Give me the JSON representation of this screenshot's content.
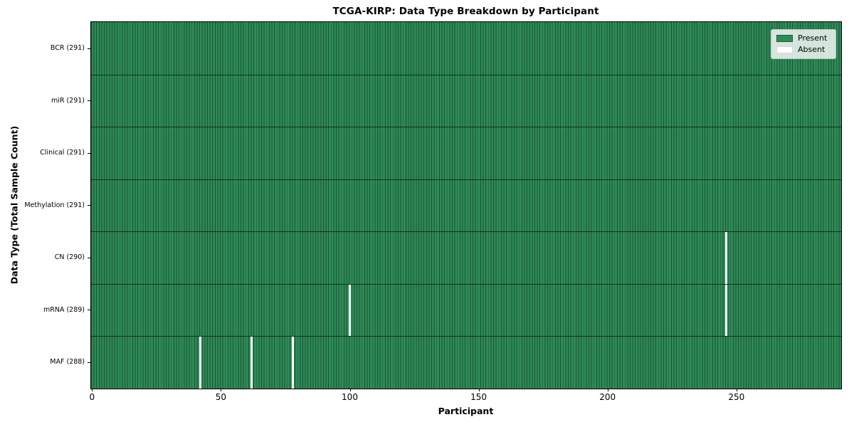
{
  "chart_data": {
    "type": "heatmap",
    "title": "TCGA-KIRP: Data Type Breakdown by Participant",
    "xlabel": "Participant",
    "ylabel": "Data Type (Total Sample Count)",
    "x_axis": {
      "label": "Participant",
      "min": 0,
      "max": 290,
      "n_participants": 291,
      "ticks": [
        0,
        50,
        100,
        150,
        200,
        250
      ]
    },
    "colors": {
      "present": "#2e8b57",
      "absent": "#ffffff",
      "cell_edge": "#1d5737"
    },
    "legend": {
      "position": "upper-right",
      "entries": [
        {
          "label": "Present",
          "color": "#2e8b57"
        },
        {
          "label": "Absent",
          "color": "#ffffff"
        }
      ]
    },
    "rows": [
      {
        "name": "BCR",
        "label": "BCR (291)",
        "total_samples": 291,
        "missing_participants": []
      },
      {
        "name": "miR",
        "label": "miR (291)",
        "total_samples": 291,
        "missing_participants": []
      },
      {
        "name": "Clinical",
        "label": "Clinical (291)",
        "total_samples": 291,
        "missing_participants": []
      },
      {
        "name": "Methylation",
        "label": "Methylation (291)",
        "total_samples": 291,
        "missing_participants": []
      },
      {
        "name": "CN",
        "label": "CN (290)",
        "total_samples": 290,
        "missing_participants": [
          246
        ]
      },
      {
        "name": "mRNA",
        "label": "mRNA (289)",
        "total_samples": 289,
        "missing_participants": [
          100,
          246
        ]
      },
      {
        "name": "MAF",
        "label": "MAF (288)",
        "total_samples": 288,
        "missing_participants": [
          42,
          62,
          78
        ]
      }
    ]
  }
}
